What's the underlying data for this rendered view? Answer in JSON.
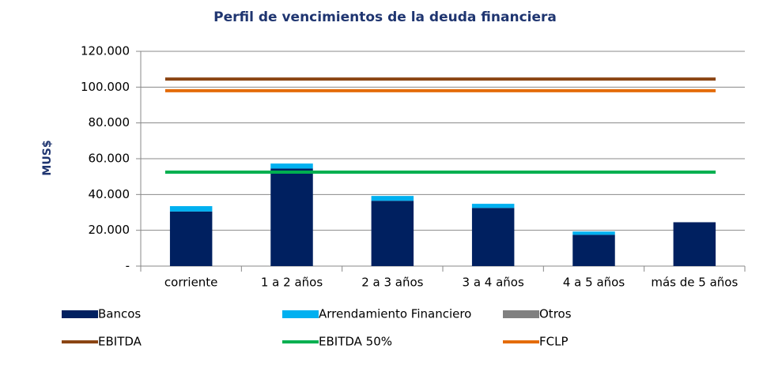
{
  "chart_data": {
    "type": "bar",
    "title": "Perfil de vencimientos de la deuda financiera",
    "y_label": "MUS$",
    "stacked": true,
    "grid": true,
    "categories": [
      "corriente",
      "1 a 2 años",
      "2 a 3 años",
      "3 a 4 años",
      "4 a 5 años",
      "más de 5 años"
    ],
    "series": [
      {
        "name": "Bancos",
        "color": "#002060",
        "values": [
          30500,
          54500,
          36500,
          32500,
          17500,
          24500
        ]
      },
      {
        "name": "Arrendamiento Financiero",
        "color": "#00b0f0",
        "values": [
          3000,
          2800,
          2700,
          2300,
          1800,
          0
        ]
      },
      {
        "name": "Otros",
        "color": "#808080",
        "values": [
          0,
          0,
          0,
          0,
          0,
          0
        ]
      },
      {
        "name": "EBITDA",
        "color": "#8b4513",
        "type": "line",
        "values": [
          104500,
          104500,
          104500,
          104500,
          104500,
          104500
        ]
      },
      {
        "name": "EBITDA 50%",
        "color": "#00b050",
        "type": "line",
        "values": [
          52500,
          52500,
          52500,
          52500,
          52500,
          52500
        ]
      },
      {
        "name": "FCLP",
        "color": "#e46c0a",
        "type": "line",
        "values": [
          98000,
          98000,
          98000,
          98000,
          98000,
          98000
        ]
      }
    ],
    "ylim": [
      0,
      120000
    ],
    "yticks": [
      {
        "value": 0,
        "label": "-"
      },
      {
        "value": 20000,
        "label": "20.000"
      },
      {
        "value": 40000,
        "label": "40.000"
      },
      {
        "value": 60000,
        "label": "60.000"
      },
      {
        "value": 80000,
        "label": "80.000"
      },
      {
        "value": 100000,
        "label": "100.000"
      },
      {
        "value": 120000,
        "label": "120.000"
      }
    ]
  }
}
